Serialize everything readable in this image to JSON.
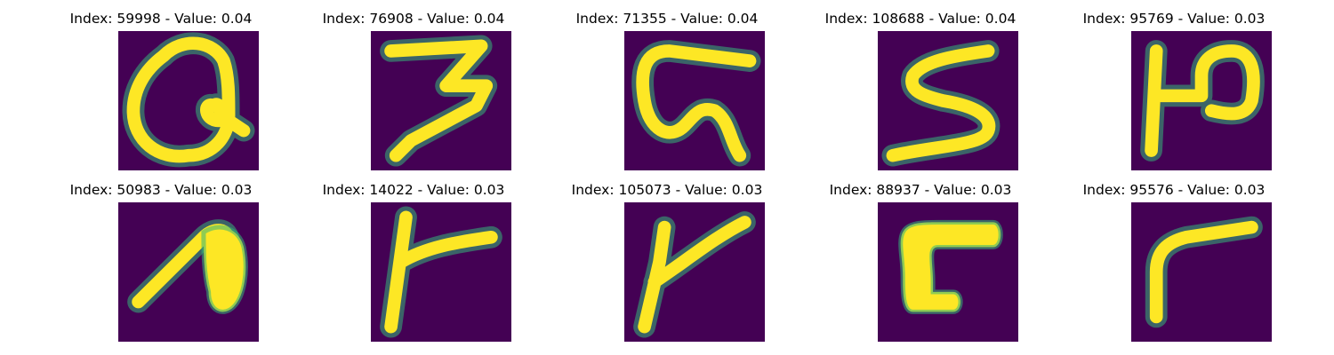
{
  "figure": {
    "colormap": "viridis",
    "background_color": "#ffffff",
    "pixel_low_color": "#440154",
    "pixel_mid_color": "#35b779",
    "pixel_high_color": "#fde725",
    "axes": "off",
    "panels": [
      {
        "title": "Index: 59998 - Value: 0.04",
        "index": 59998,
        "value": 0.04,
        "glyph": "looped-a-shape"
      },
      {
        "title": "Index: 76908 - Value: 0.04",
        "index": 76908,
        "value": 0.04,
        "glyph": "three-shape"
      },
      {
        "title": "Index: 71355 - Value: 0.04",
        "index": 71355,
        "value": 0.04,
        "glyph": "looped-g-shape"
      },
      {
        "title": "Index: 108688 - Value: 0.04",
        "index": 108688,
        "value": 0.04,
        "glyph": "s-shape"
      },
      {
        "title": "Index: 95769 - Value: 0.03",
        "index": 95769,
        "value": 0.03,
        "glyph": "h-shape"
      },
      {
        "title": "Index: 50983 - Value: 0.03",
        "index": 50983,
        "value": 0.03,
        "glyph": "filled-n-shape"
      },
      {
        "title": "Index: 14022 - Value: 0.03",
        "index": 14022,
        "value": 0.03,
        "glyph": "t-shape"
      },
      {
        "title": "Index: 105073 - Value: 0.03",
        "index": 105073,
        "value": 0.03,
        "glyph": "k-shape"
      },
      {
        "title": "Index: 88937 - Value: 0.03",
        "index": 88937,
        "value": 0.03,
        "glyph": "bold-c-shape"
      },
      {
        "title": "Index: 95576 - Value: 0.03",
        "index": 95576,
        "value": 0.03,
        "glyph": "r-shape"
      }
    ]
  }
}
